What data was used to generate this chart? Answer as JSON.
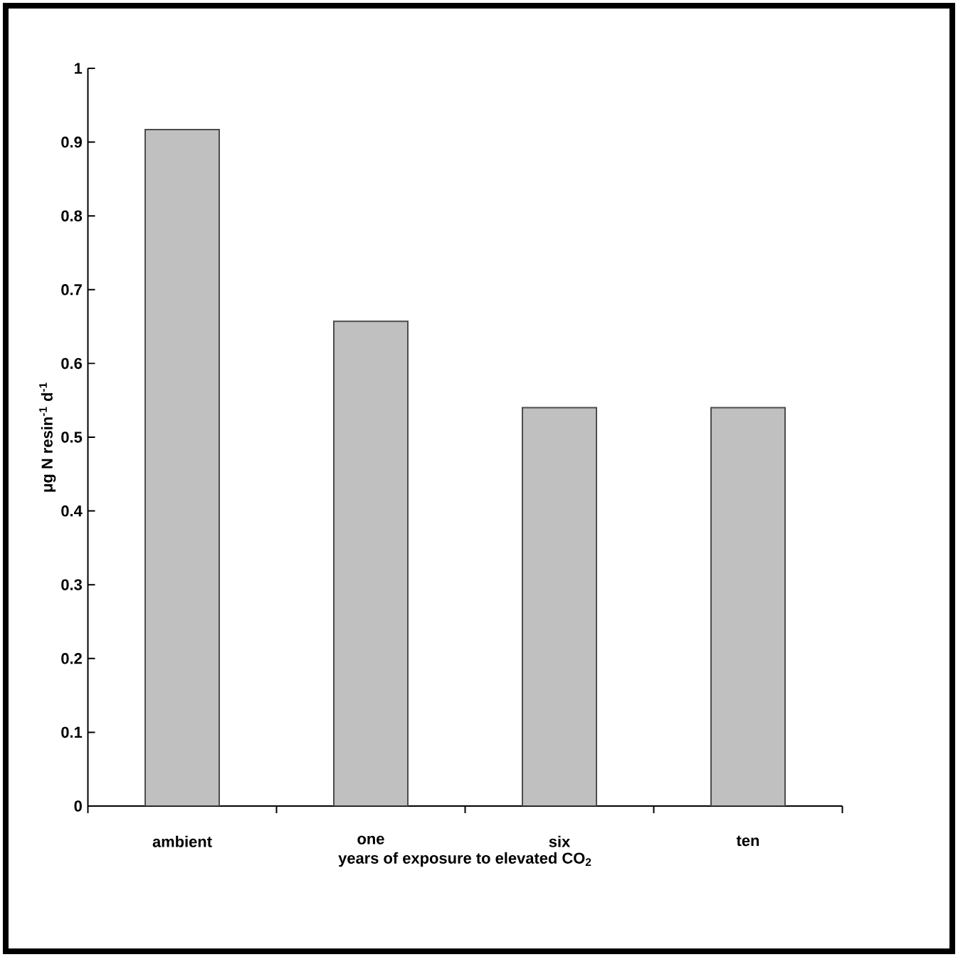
{
  "chart_data": {
    "type": "bar",
    "xlabel": "years of exposure to elevated CO$_{2}$",
    "ylabel": "μg N resin$^{-1}$ d$^{-1}$",
    "categories": [
      "ambient",
      "one",
      "six",
      "ten"
    ],
    "values": [
      0.917,
      0.657,
      0.54,
      0.54
    ],
    "color": "#c0c0c0",
    "ylim": [
      0,
      1
    ],
    "yticks": [
      0,
      0.1,
      0.2,
      0.3,
      0.4,
      0.5,
      0.6,
      0.7,
      0.8,
      0.9,
      1
    ],
    "grid": false
  }
}
